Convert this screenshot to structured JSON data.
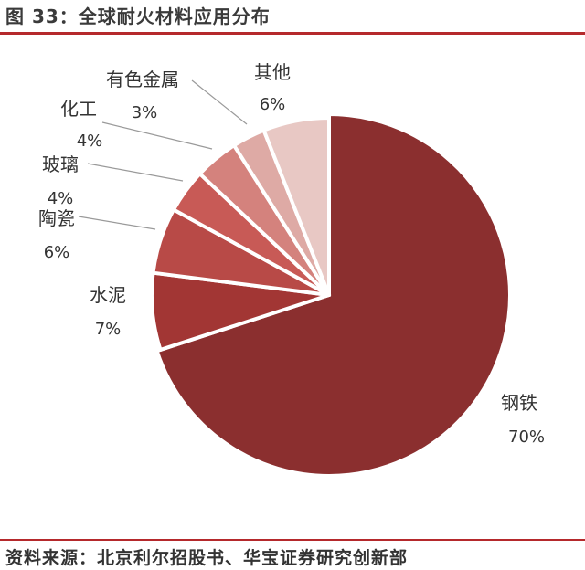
{
  "title": "图 33：全球耐火材料应用分布",
  "source": "资料来源：北京利尔招股书、华宝证券研究创新部",
  "chart_data": {
    "type": "pie",
    "start": "top, clockwise",
    "slices": [
      {
        "label": "钢铁",
        "value": 70,
        "value_label": "70%",
        "color": "#8b2f2f"
      },
      {
        "label": "水泥",
        "value": 7,
        "value_label": "7%",
        "color": "#a23634"
      },
      {
        "label": "陶瓷",
        "value": 6,
        "value_label": "6%",
        "color": "#b84a47"
      },
      {
        "label": "玻璃",
        "value": 4,
        "value_label": "4%",
        "color": "#c85a56"
      },
      {
        "label": "化工",
        "value": 4,
        "value_label": "4%",
        "color": "#d4827d"
      },
      {
        "label": "有色金属",
        "value": 3,
        "value_label": "3%",
        "color": "#deaaa5"
      },
      {
        "label": "其他",
        "value": 6,
        "value_label": "6%",
        "color": "#e8c8c4"
      }
    ]
  }
}
